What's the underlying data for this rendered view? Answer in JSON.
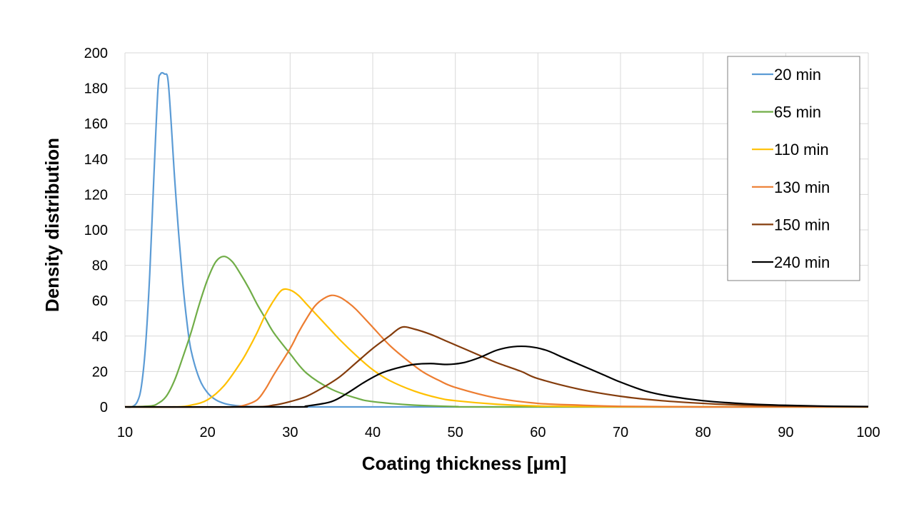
{
  "chart_data": {
    "type": "line",
    "title": "",
    "xlabel": "Coating thickness [µm]",
    "ylabel": "Density distribution",
    "xlim": [
      10,
      100
    ],
    "ylim": [
      0,
      200
    ],
    "xticks": [
      10,
      20,
      30,
      40,
      50,
      60,
      70,
      80,
      90,
      100
    ],
    "yticks": [
      0,
      20,
      40,
      60,
      80,
      100,
      120,
      140,
      160,
      180,
      200
    ],
    "grid": true,
    "legend_position": "top-right",
    "series": [
      {
        "name": "20 min",
        "color": "#5B9BD5",
        "points": [
          [
            10,
            0
          ],
          [
            10.8,
            0
          ],
          [
            11.5,
            3
          ],
          [
            12,
            12
          ],
          [
            12.5,
            35
          ],
          [
            13,
            75
          ],
          [
            13.5,
            130
          ],
          [
            14,
            180
          ],
          [
            14.3,
            188
          ],
          [
            14.8,
            188
          ],
          [
            15.2,
            185
          ],
          [
            15.6,
            160
          ],
          [
            16,
            130
          ],
          [
            16.5,
            98
          ],
          [
            17,
            70
          ],
          [
            17.5,
            48
          ],
          [
            18,
            32
          ],
          [
            19,
            16
          ],
          [
            20,
            8
          ],
          [
            21,
            4
          ],
          [
            22,
            2
          ],
          [
            23,
            1
          ],
          [
            24,
            0.5
          ],
          [
            26,
            0.1
          ],
          [
            30,
            0
          ],
          [
            100,
            0
          ]
        ]
      },
      {
        "name": "65 min",
        "color": "#70AD47",
        "points": [
          [
            10,
            0
          ],
          [
            13,
            0.5
          ],
          [
            14,
            2
          ],
          [
            15,
            6
          ],
          [
            16,
            15
          ],
          [
            17,
            28
          ],
          [
            18,
            42
          ],
          [
            19,
            58
          ],
          [
            20,
            72
          ],
          [
            21,
            82
          ],
          [
            22,
            85
          ],
          [
            23,
            82
          ],
          [
            24,
            75
          ],
          [
            25,
            67
          ],
          [
            26,
            58
          ],
          [
            27,
            50
          ],
          [
            28,
            42
          ],
          [
            30,
            30
          ],
          [
            32,
            19
          ],
          [
            35,
            10
          ],
          [
            38,
            5
          ],
          [
            40,
            3
          ],
          [
            45,
            1
          ],
          [
            50,
            0.2
          ],
          [
            55,
            0
          ],
          [
            100,
            0
          ]
        ]
      },
      {
        "name": "110 min",
        "color": "#FFC000",
        "points": [
          [
            10,
            0
          ],
          [
            16,
            0
          ],
          [
            18,
            1
          ],
          [
            20,
            4
          ],
          [
            22,
            12
          ],
          [
            24,
            25
          ],
          [
            25,
            33
          ],
          [
            26,
            42
          ],
          [
            27,
            52
          ],
          [
            28,
            60
          ],
          [
            29,
            66
          ],
          [
            30,
            66
          ],
          [
            31,
            63
          ],
          [
            32,
            58
          ],
          [
            34,
            48
          ],
          [
            36,
            38
          ],
          [
            38,
            29
          ],
          [
            40,
            21
          ],
          [
            42,
            15
          ],
          [
            45,
            9
          ],
          [
            48,
            5
          ],
          [
            50,
            3.5
          ],
          [
            55,
            1.5
          ],
          [
            60,
            0.5
          ],
          [
            70,
            0.1
          ],
          [
            100,
            0
          ]
        ]
      },
      {
        "name": "130 min",
        "color": "#ED7D31",
        "points": [
          [
            10,
            0
          ],
          [
            20,
            0
          ],
          [
            23,
            0
          ],
          [
            24.5,
            1
          ],
          [
            26,
            4
          ],
          [
            27,
            10
          ],
          [
            28,
            18
          ],
          [
            30,
            33
          ],
          [
            31,
            42
          ],
          [
            32,
            50
          ],
          [
            33,
            57
          ],
          [
            34,
            61
          ],
          [
            35,
            63
          ],
          [
            36,
            62
          ],
          [
            37,
            59
          ],
          [
            38,
            55
          ],
          [
            40,
            45
          ],
          [
            42,
            35
          ],
          [
            44,
            27
          ],
          [
            46,
            20
          ],
          [
            48,
            15
          ],
          [
            50,
            11
          ],
          [
            55,
            5
          ],
          [
            60,
            2
          ],
          [
            65,
            1
          ],
          [
            70,
            0.3
          ],
          [
            80,
            0
          ],
          [
            100,
            0
          ]
        ]
      },
      {
        "name": "150 min",
        "color": "#843C0C",
        "points": [
          [
            10,
            0
          ],
          [
            25,
            0
          ],
          [
            28,
            1
          ],
          [
            30,
            3
          ],
          [
            32,
            6
          ],
          [
            34,
            11
          ],
          [
            36,
            17
          ],
          [
            38,
            25
          ],
          [
            40,
            33
          ],
          [
            42,
            40
          ],
          [
            43.5,
            45
          ],
          [
            45,
            44
          ],
          [
            47,
            41
          ],
          [
            49,
            37
          ],
          [
            51,
            33
          ],
          [
            53,
            29
          ],
          [
            55,
            25
          ],
          [
            58,
            20
          ],
          [
            60,
            16
          ],
          [
            65,
            10
          ],
          [
            70,
            6
          ],
          [
            75,
            3.5
          ],
          [
            80,
            2
          ],
          [
            85,
            1
          ],
          [
            90,
            0.5
          ],
          [
            100,
            0.1
          ]
        ]
      },
      {
        "name": "240 min",
        "color": "#000000",
        "points": [
          [
            10,
            0
          ],
          [
            30,
            0
          ],
          [
            32,
            0.5
          ],
          [
            35,
            3
          ],
          [
            37,
            8
          ],
          [
            39,
            14
          ],
          [
            41,
            19
          ],
          [
            43,
            22
          ],
          [
            45,
            24
          ],
          [
            47,
            24.5
          ],
          [
            49,
            24
          ],
          [
            51,
            25
          ],
          [
            53,
            28
          ],
          [
            55,
            32
          ],
          [
            57,
            34
          ],
          [
            59,
            34
          ],
          [
            61,
            32
          ],
          [
            63,
            28
          ],
          [
            65,
            24
          ],
          [
            68,
            18
          ],
          [
            70,
            14
          ],
          [
            73,
            9
          ],
          [
            76,
            6
          ],
          [
            80,
            3.5
          ],
          [
            85,
            1.8
          ],
          [
            90,
            0.9
          ],
          [
            95,
            0.4
          ],
          [
            100,
            0.2
          ]
        ]
      }
    ]
  }
}
